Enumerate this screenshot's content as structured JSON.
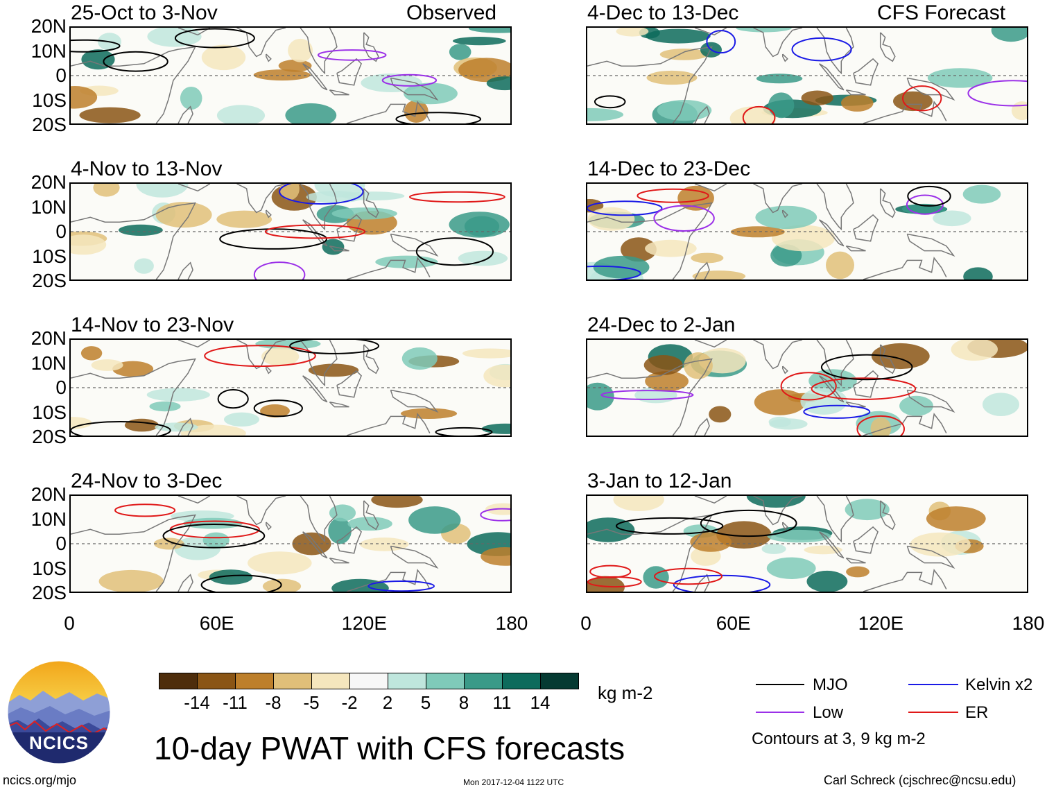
{
  "chart_data": {
    "type": "heatmap",
    "title": "10-day PWAT with CFS forecasts",
    "colorbar": {
      "unit": "kg m-2",
      "ticks": [
        "-14",
        "-11",
        "-8",
        "-5",
        "-2",
        "2",
        "5",
        "8",
        "11",
        "14"
      ],
      "colors": [
        "#4e2d0b",
        "#8a5515",
        "#bd7f2b",
        "#e0bf79",
        "#f5e6bd",
        "#f7f7f7",
        "#bfe6dd",
        "#7fcab9",
        "#3a9a88",
        "#0d6b5c",
        "#053a32"
      ]
    },
    "x_axis": {
      "ticks": [
        "0",
        "60E",
        "120E",
        "180"
      ],
      "range": [
        0,
        180
      ]
    },
    "y_axis": {
      "ticks": [
        "20N",
        "10N",
        "0",
        "10S",
        "20S"
      ],
      "range": [
        -20,
        20
      ]
    },
    "column_labels": {
      "left": "Observed",
      "right": "CFS Forecast"
    },
    "panels": [
      {
        "title": "25-Oct to 3-Nov",
        "col": "left"
      },
      {
        "title": "4-Nov to 13-Nov",
        "col": "left"
      },
      {
        "title": "14-Nov to 23-Nov",
        "col": "left"
      },
      {
        "title": "24-Nov to 3-Dec",
        "col": "left"
      },
      {
        "title": "4-Dec to 13-Dec",
        "col": "right"
      },
      {
        "title": "14-Dec to 23-Dec",
        "col": "right"
      },
      {
        "title": "24-Dec to 2-Jan",
        "col": "right"
      },
      {
        "title": "3-Jan to 12-Jan",
        "col": "right"
      }
    ],
    "contour_legend": [
      {
        "name": "MJO",
        "color": "#000000"
      },
      {
        "name": "Kelvin x2",
        "color": "#1a1ae6"
      },
      {
        "name": "Low",
        "color": "#9b30e8"
      },
      {
        "name": "ER",
        "color": "#e01818"
      }
    ],
    "contour_note": "Contours at 3, 9 kg m-2"
  },
  "branding": {
    "logo_text": "NCICS",
    "site": "ncics.org/mjo"
  },
  "footer": {
    "timestamp": "Mon 2017-12-04 1122 UTC",
    "author": "Carl Schreck (cjschrec@ncsu.edu)"
  }
}
